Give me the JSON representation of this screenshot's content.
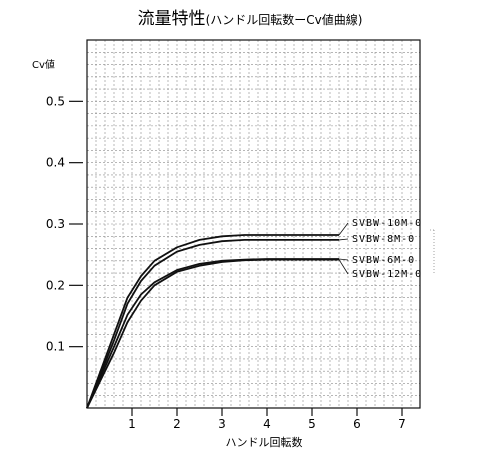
{
  "chart_data": {
    "type": "line",
    "title": "流量特性",
    "subtitle": "(ハンドル回転数ーCv値曲線)",
    "xlabel": "ハンドル回転数",
    "ylabel": "Cv値",
    "xlim": [
      0,
      7.4
    ],
    "ylim": [
      0,
      0.6
    ],
    "xticks": [
      1,
      2,
      3,
      4,
      5,
      6,
      7
    ],
    "yticks": [
      0.1,
      0.2,
      0.3,
      0.4,
      0.5
    ],
    "ytick_labels": [
      "0.1",
      "0.2",
      "0.3",
      "0.4",
      "0.5"
    ],
    "grid": true,
    "series": [
      {
        "name": "SVBW-10M-0",
        "x": [
          0,
          0.3,
          0.6,
          0.9,
          1.2,
          1.5,
          2.0,
          2.5,
          3.0,
          3.5,
          4.0,
          5.0,
          5.6
        ],
        "y": [
          0,
          0.06,
          0.12,
          0.18,
          0.215,
          0.24,
          0.262,
          0.274,
          0.28,
          0.282,
          0.282,
          0.282,
          0.282
        ]
      },
      {
        "name": "SVBW-8M-0",
        "x": [
          0,
          0.3,
          0.6,
          0.9,
          1.2,
          1.5,
          2.0,
          2.5,
          3.0,
          3.5,
          4.0,
          5.0,
          5.6
        ],
        "y": [
          0,
          0.055,
          0.11,
          0.17,
          0.207,
          0.232,
          0.255,
          0.266,
          0.272,
          0.274,
          0.274,
          0.274,
          0.274
        ]
      },
      {
        "name": "SVBW-6M-0",
        "x": [
          0,
          0.3,
          0.6,
          0.9,
          1.2,
          1.5,
          2.0,
          2.5,
          3.0,
          3.5,
          4.0,
          5.0,
          5.6
        ],
        "y": [
          0,
          0.05,
          0.1,
          0.152,
          0.185,
          0.205,
          0.225,
          0.235,
          0.24,
          0.242,
          0.243,
          0.243,
          0.243
        ]
      },
      {
        "name": "SVBW-12M-0",
        "x": [
          0,
          0.3,
          0.6,
          0.9,
          1.2,
          1.5,
          2.0,
          2.5,
          3.0,
          3.5,
          4.0,
          5.0,
          5.6
        ],
        "y": [
          0,
          0.045,
          0.09,
          0.14,
          0.175,
          0.2,
          0.222,
          0.232,
          0.238,
          0.241,
          0.242,
          0.242,
          0.242
        ]
      }
    ]
  },
  "colors": {
    "ink": "#111111",
    "grid": "#8a8a8a",
    "background": "#ffffff"
  }
}
